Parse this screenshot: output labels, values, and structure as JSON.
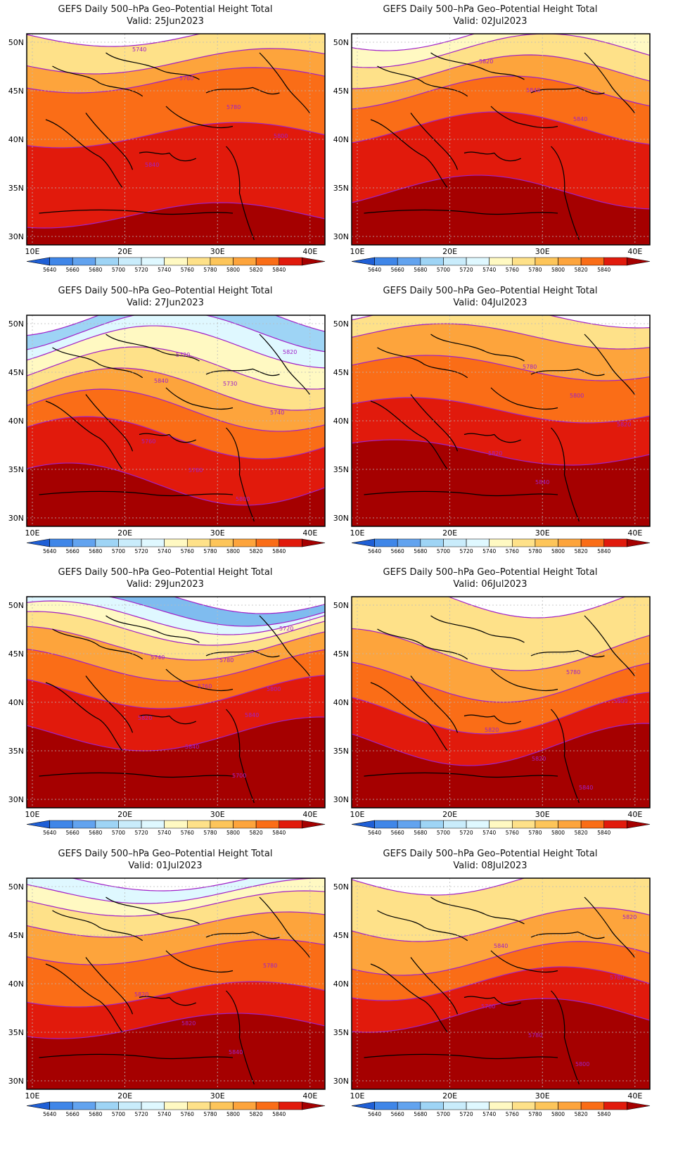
{
  "panels": [
    {
      "title": "GEFS Daily 500–hPa Geo–Potential Height Total",
      "valid": "Valid:  25Jun2023",
      "bands": [
        [
          0.14,
          "#a50000"
        ],
        [
          0.52,
          "#e11a0c"
        ],
        [
          0.78,
          "#fa6d17"
        ],
        [
          0.87,
          "#fda43c"
        ],
        [
          1.0,
          "#fee189"
        ]
      ],
      "contour_labels": [
        "5740",
        "5760",
        "5780",
        "5800",
        "5840"
      ]
    },
    {
      "title": "GEFS Daily 500–hPa Geo–Potential Height Total",
      "valid": "Valid:  02Jul2023",
      "bands": [
        [
          0.25,
          "#a50000"
        ],
        [
          0.55,
          "#e11a0c"
        ],
        [
          0.72,
          "#fa6d17"
        ],
        [
          0.82,
          "#fda43c"
        ],
        [
          0.92,
          "#fee189"
        ],
        [
          1.0,
          "#fff9c2"
        ]
      ],
      "contour_labels": [
        "5820",
        "5840",
        "5840"
      ]
    },
    {
      "title": "GEFS Daily 500–hPa Geo–Potential Height Total",
      "valid": "Valid:  27Jun2023",
      "bands": [
        [
          0.2,
          "#a50000"
        ],
        [
          0.42,
          "#e11a0c"
        ],
        [
          0.55,
          "#fa6d17"
        ],
        [
          0.65,
          "#fda43c"
        ],
        [
          0.75,
          "#fee189"
        ],
        [
          0.85,
          "#fff9c2"
        ],
        [
          0.92,
          "#dff8ff"
        ],
        [
          1.0,
          "#9ed4f5"
        ]
      ],
      "contour_labels": [
        "5720",
        "5730",
        "5740",
        "5760",
        "5780",
        "5800",
        "5820",
        "5840"
      ]
    },
    {
      "title": "GEFS Daily 500–hPa Geo–Potential Height Total",
      "valid": "Valid:  04Jul2023",
      "bands": [
        [
          0.35,
          "#a50000"
        ],
        [
          0.55,
          "#e11a0c"
        ],
        [
          0.75,
          "#fa6d17"
        ],
        [
          0.9,
          "#fda43c"
        ],
        [
          1.0,
          "#fee189"
        ]
      ],
      "contour_labels": [
        "5780",
        "5800",
        "5820",
        "5820",
        "5840"
      ]
    },
    {
      "title": "GEFS Daily 500–hPa Geo–Potential Height Total",
      "valid": "Valid:  29Jun2023",
      "bands": [
        [
          0.35,
          "#a50000"
        ],
        [
          0.55,
          "#e11a0c"
        ],
        [
          0.68,
          "#fa6d17"
        ],
        [
          0.78,
          "#fda43c"
        ],
        [
          0.85,
          "#fee189"
        ],
        [
          0.9,
          "#fff9c2"
        ],
        [
          0.94,
          "#dff8ff"
        ],
        [
          1.0,
          "#7fbcef"
        ]
      ],
      "contour_labels": [
        "5780",
        "5800",
        "5820",
        "5840",
        "5700",
        "5720",
        "5740",
        "5760",
        "5840"
      ]
    },
    {
      "title": "GEFS Daily 500–hPa Geo–Potential Height Total",
      "valid": "Valid:  06Jul2023",
      "bands": [
        [
          0.3,
          "#a50000"
        ],
        [
          0.45,
          "#e11a0c"
        ],
        [
          0.6,
          "#fa6d17"
        ],
        [
          0.75,
          "#fda43c"
        ],
        [
          1.0,
          "#fee189"
        ]
      ],
      "contour_labels": [
        "5780",
        "5800",
        "5820",
        "5820",
        "5840"
      ]
    },
    {
      "title": "GEFS Daily 500–hPa Geo–Potential Height Total",
      "valid": "Valid:  01Jul2023",
      "bands": [
        [
          0.3,
          "#a50000"
        ],
        [
          0.45,
          "#e11a0c"
        ],
        [
          0.65,
          "#fa6d17"
        ],
        [
          0.78,
          "#fda43c"
        ],
        [
          0.88,
          "#fee189"
        ],
        [
          0.94,
          "#fff9c2"
        ],
        [
          1.0,
          "#dff8ff"
        ]
      ],
      "contour_labels": [
        "5780",
        "5820",
        "5820",
        "5840"
      ]
    },
    {
      "title": "GEFS Daily 500–hPa Geo–Potential Height Total",
      "valid": "Valid:  08Jul2023",
      "bands": [
        [
          0.35,
          "#a50000"
        ],
        [
          0.5,
          "#e11a0c"
        ],
        [
          0.62,
          "#fa6d17"
        ],
        [
          0.78,
          "#fda43c"
        ],
        [
          1.0,
          "#fee189"
        ]
      ],
      "contour_labels": [
        "5780",
        "5760",
        "5780",
        "5800",
        "5820",
        "5840"
      ]
    }
  ],
  "axes": {
    "lat_labels": [
      "50N",
      "45N",
      "40N",
      "35N",
      "30N"
    ],
    "lon_labels": [
      "10E",
      "20E",
      "30E",
      "40E"
    ]
  },
  "colorbar": {
    "colors": [
      "#1f5fd6",
      "#3f86e8",
      "#62a3ef",
      "#9ed4f5",
      "#c9ecfb",
      "#dff8ff",
      "#fff9c2",
      "#fee189",
      "#fdc55a",
      "#fda43c",
      "#fa6d17",
      "#e11a0c",
      "#a50000"
    ],
    "labels": [
      "5640",
      "5660",
      "5680",
      "5700",
      "5720",
      "5740",
      "5760",
      "5780",
      "5800",
      "5820",
      "5840"
    ]
  },
  "colors": {
    "contour": "#a020c8",
    "coast": "#000000",
    "grid": "#bbbbbb"
  }
}
